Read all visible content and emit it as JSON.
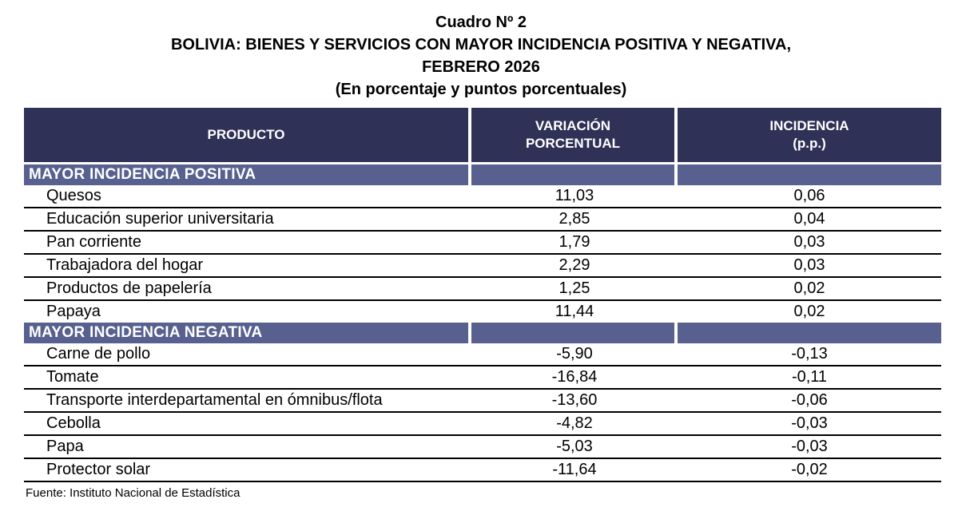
{
  "title": {
    "line1": "Cuadro Nº 2",
    "line2": "BOLIVIA: BIENES Y SERVICIOS CON MAYOR INCIDENCIA POSITIVA Y NEGATIVA,",
    "line3": "FEBRERO 2026",
    "line4": "(En porcentaje y puntos porcentuales)"
  },
  "table": {
    "columns": {
      "producto": "PRODUCTO",
      "variacion": "VARIACIÓN\nPORCENTUAL",
      "incidencia": "INCIDENCIA\n(p.p.)"
    },
    "sections": [
      {
        "header": "MAYOR INCIDENCIA POSITIVA",
        "rows": [
          {
            "product": "Quesos",
            "variacion": "11,03",
            "incidencia": "0,06"
          },
          {
            "product": "Educación superior universitaria",
            "variacion": "2,85",
            "incidencia": "0,04"
          },
          {
            "product": "Pan corriente",
            "variacion": "1,79",
            "incidencia": "0,03"
          },
          {
            "product": "Trabajadora del hogar",
            "variacion": "2,29",
            "incidencia": "0,03"
          },
          {
            "product": "Productos de papelería",
            "variacion": "1,25",
            "incidencia": "0,02"
          },
          {
            "product": "Papaya",
            "variacion": "11,44",
            "incidencia": "0,02"
          }
        ]
      },
      {
        "header": "MAYOR INCIDENCIA NEGATIVA",
        "rows": [
          {
            "product": "Carne de pollo",
            "variacion": "-5,90",
            "incidencia": "-0,13"
          },
          {
            "product": "Tomate",
            "variacion": "-16,84",
            "incidencia": "-0,11"
          },
          {
            "product": "Transporte interdepartamental en ómnibus/flota",
            "variacion": "-13,60",
            "incidencia": "-0,06"
          },
          {
            "product": "Cebolla",
            "variacion": "-4,82",
            "incidencia": "-0,03"
          },
          {
            "product": "Papa",
            "variacion": "-5,03",
            "incidencia": "-0,03"
          },
          {
            "product": "Protector solar",
            "variacion": "-11,64",
            "incidencia": "-0,02"
          }
        ]
      }
    ]
  },
  "footer": {
    "source": "Fuente: Instituto Nacional de Estadística"
  },
  "colors": {
    "header_bg": "#2F3157",
    "section_bg": "#57608F",
    "row_border": "#000000",
    "header_text": "#FFFFFF"
  },
  "chart_data": {
    "type": "table",
    "title": "Cuadro Nº 2 — BOLIVIA: BIENES Y SERVICIOS CON MAYOR INCIDENCIA POSITIVA Y NEGATIVA, FEBRERO 2026 (En porcentaje y puntos porcentuales)",
    "columns": [
      "PRODUCTO",
      "VARIACIÓN PORCENTUAL",
      "INCIDENCIA (p.p.)"
    ],
    "sections": [
      {
        "label": "MAYOR INCIDENCIA POSITIVA",
        "rows": [
          [
            "Quesos",
            11.03,
            0.06
          ],
          [
            "Educación superior universitaria",
            2.85,
            0.04
          ],
          [
            "Pan corriente",
            1.79,
            0.03
          ],
          [
            "Trabajadora del hogar",
            2.29,
            0.03
          ],
          [
            "Productos de papelería",
            1.25,
            0.02
          ],
          [
            "Papaya",
            11.44,
            0.02
          ]
        ]
      },
      {
        "label": "MAYOR INCIDENCIA NEGATIVA",
        "rows": [
          [
            "Carne de pollo",
            -5.9,
            -0.13
          ],
          [
            "Tomate",
            -16.84,
            -0.11
          ],
          [
            "Transporte interdepartamental en ómnibus/flota",
            -13.6,
            -0.06
          ],
          [
            "Cebolla",
            -4.82,
            -0.03
          ],
          [
            "Papa",
            -5.03,
            -0.03
          ],
          [
            "Protector solar",
            -11.64,
            -0.02
          ]
        ]
      }
    ],
    "source": "Fuente: Instituto Nacional de Estadística"
  }
}
